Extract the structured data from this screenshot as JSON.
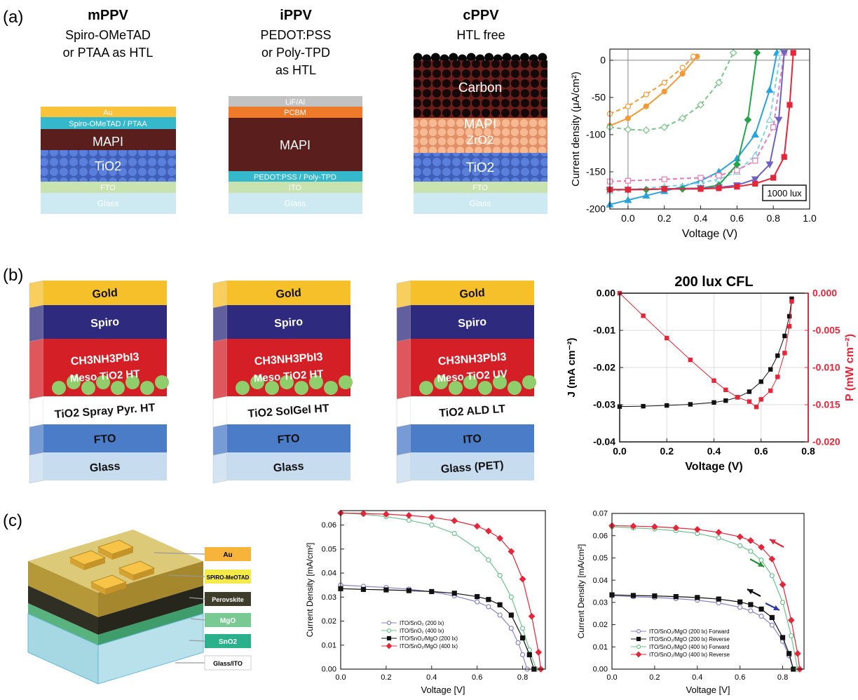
{
  "panels": {
    "a": "(a)",
    "b": "(b)",
    "c": "(c)"
  },
  "a_devices": [
    {
      "title": "mPPV",
      "subtitle": [
        "Spiro-OMeTAD",
        "or PTAA as HTL"
      ],
      "layers": [
        {
          "label": "Au",
          "color": "#f8c33a"
        },
        {
          "label": "Spiro-OMeTAD / PTAA",
          "color": "#36b8cc"
        },
        {
          "label": "MAPI",
          "color": "#5a1f1d"
        },
        {
          "label": "TiO2",
          "color": "#4a6fd0"
        },
        {
          "label": "FTO",
          "color": "#c8e2b0"
        },
        {
          "label": "Glass",
          "color": "#cdeaf2"
        }
      ]
    },
    {
      "title": "iPPV",
      "subtitle": [
        "PEDOT:PSS",
        "or Poly-TPD",
        "as HTL"
      ],
      "layers": [
        {
          "label": "LiF/Al",
          "color": "#c2c2c2"
        },
        {
          "label": "PCBM",
          "color": "#ee7a2a"
        },
        {
          "label": "MAPI",
          "color": "#5a1f1d"
        },
        {
          "label": "PEDOT:PSS / Poly-TPD",
          "color": "#36b8cc"
        },
        {
          "label": "ITO",
          "color": "#c8e2b0"
        },
        {
          "label": "Glass",
          "color": "#cdeaf2"
        }
      ]
    },
    {
      "title": "cPPV",
      "subtitle": [
        "HTL free"
      ],
      "layers": [
        {
          "label": "Carbon",
          "color": "#1c0c0c"
        },
        {
          "label": "MAPI",
          "color": "#5a1f1d"
        },
        {
          "label": "ZrO2",
          "color": "#f2a981"
        },
        {
          "label": "TiO2",
          "color": "#4a6fd0"
        },
        {
          "label": "FTO",
          "color": "#c8e2b0"
        },
        {
          "label": "Glass",
          "color": "#cdeaf2"
        }
      ]
    }
  ],
  "b_devices": [
    {
      "layers": [
        "Gold",
        "Spiro",
        "CH3NH3PbI3",
        "Meso TiO2 HT",
        "TiO2 Spray Pyr. HT",
        "FTO",
        "Glass"
      ]
    },
    {
      "layers": [
        "Gold",
        "Spiro",
        "CH3NH3PbI3",
        "Meso TiO2 HT",
        "TiO2 SolGel HT",
        "FTO",
        "Glass"
      ]
    },
    {
      "layers": [
        "Gold",
        "Spiro",
        "CH3NH3PbI3",
        "Meso TiO2 UV",
        "TiO2 ALD LT",
        "ITO",
        "Glass (PET)"
      ]
    }
  ],
  "c_device_labels": [
    "Au",
    "SPIRO-MeOTAD",
    "Perovskite",
    "MgO",
    "SnO2",
    "Glass/ITO"
  ],
  "colors": {
    "gold": "#f6c02a",
    "spiro": "#2e2a7e",
    "perov": "#d41f26",
    "meso": "#8fce6a",
    "fto": "#4a7cc8",
    "glass": "#c7dcef"
  },
  "chart_data": [
    {
      "type": "line",
      "id": "a",
      "xlabel": "Voltage (V)",
      "ylabel": "Current density (μA/cm²)",
      "xlim": [
        -0.1,
        1.0
      ],
      "ylim": [
        -200,
        15
      ],
      "xticks": [
        0.0,
        0.2,
        0.4,
        0.6,
        0.8,
        1.0
      ],
      "yticks": [
        -200,
        -150,
        -100,
        -50,
        0
      ],
      "annotation": "1000 lux",
      "series": [
        {
          "color": "#f39a36",
          "dashed": false,
          "marker": "circle",
          "filled": true,
          "x": [
            -0.1,
            0.0,
            0.1,
            0.2,
            0.3,
            0.38
          ],
          "y": [
            -88,
            -78,
            -62,
            -42,
            -18,
            5
          ]
        },
        {
          "color": "#f39a36",
          "dashed": true,
          "marker": "circle",
          "filled": false,
          "x": [
            -0.1,
            0.0,
            0.1,
            0.2,
            0.3,
            0.36
          ],
          "y": [
            -72,
            -62,
            -46,
            -30,
            -10,
            5
          ]
        },
        {
          "color": "#79c28a",
          "dashed": true,
          "marker": "diamond",
          "filled": false,
          "x": [
            -0.1,
            0.0,
            0.1,
            0.2,
            0.3,
            0.4,
            0.5,
            0.58
          ],
          "y": [
            -90,
            -93,
            -94,
            -90,
            -78,
            -60,
            -30,
            10
          ]
        },
        {
          "color": "#2aa3dc",
          "dashed": false,
          "marker": "triangle",
          "filled": true,
          "x": [
            -0.1,
            0.0,
            0.1,
            0.2,
            0.3,
            0.4,
            0.5,
            0.6,
            0.7,
            0.78,
            0.82
          ],
          "y": [
            -194,
            -188,
            -182,
            -176,
            -170,
            -162,
            -150,
            -132,
            -100,
            -40,
            10
          ]
        },
        {
          "color": "#7fd0e8",
          "dashed": true,
          "marker": "triangle",
          "filled": false,
          "x": [
            -0.1,
            0.0,
            0.2,
            0.4,
            0.5,
            0.6,
            0.7,
            0.78,
            0.84
          ],
          "y": [
            -176,
            -174,
            -170,
            -165,
            -160,
            -150,
            -128,
            -80,
            10
          ]
        },
        {
          "color": "#e87ab8",
          "dashed": true,
          "marker": "square",
          "filled": false,
          "x": [
            -0.1,
            0.0,
            0.2,
            0.4,
            0.5,
            0.6,
            0.7,
            0.8,
            0.86
          ],
          "y": [
            -163,
            -162,
            -160,
            -158,
            -155,
            -148,
            -135,
            -90,
            10
          ]
        },
        {
          "color": "#27a34a",
          "dashed": false,
          "marker": "diamond",
          "filled": true,
          "x": [
            -0.1,
            0.0,
            0.1,
            0.2,
            0.3,
            0.4,
            0.5,
            0.6,
            0.66,
            0.71
          ],
          "y": [
            -174,
            -174,
            -174,
            -173,
            -173,
            -172,
            -168,
            -140,
            -80,
            10
          ]
        },
        {
          "color": "#6f62c2",
          "dashed": false,
          "marker": "triangle-down",
          "filled": true,
          "x": [
            -0.1,
            0.0,
            0.2,
            0.4,
            0.5,
            0.6,
            0.7,
            0.78,
            0.83,
            0.86
          ],
          "y": [
            -174,
            -174,
            -173,
            -172,
            -171,
            -168,
            -160,
            -140,
            -80,
            10
          ]
        },
        {
          "color": "#e3263a",
          "dashed": false,
          "marker": "square",
          "filled": true,
          "x": [
            -0.1,
            0.0,
            0.2,
            0.4,
            0.5,
            0.6,
            0.7,
            0.8,
            0.86,
            0.89,
            0.91
          ],
          "y": [
            -174,
            -174,
            -173,
            -173,
            -172,
            -170,
            -166,
            -158,
            -130,
            -60,
            10
          ]
        }
      ]
    },
    {
      "type": "line",
      "id": "b",
      "title": "200 lux CFL",
      "xlabel": "Voltage (V)",
      "ylabel": "J (mA cm⁻²)",
      "y2label": "P (mW cm⁻²)",
      "xlim": [
        0,
        0.8
      ],
      "ylim": [
        -0.04,
        0.0
      ],
      "y2lim": [
        -0.02,
        0.0
      ],
      "xticks": [
        0.0,
        0.2,
        0.4,
        0.6,
        0.8
      ],
      "yticks": [
        "-0.04",
        "-0.03",
        "-0.02",
        "-0.01",
        "0.00"
      ],
      "y2ticks": [
        "-0.020",
        "-0.015",
        "-0.010",
        "-0.005",
        "0.000"
      ],
      "grid": true,
      "series": [
        {
          "axis": "left",
          "color": "#111111",
          "marker": "square",
          "x": [
            0.0,
            0.1,
            0.2,
            0.3,
            0.4,
            0.45,
            0.5,
            0.55,
            0.6,
            0.64,
            0.67,
            0.7,
            0.72,
            0.73
          ],
          "y": [
            -0.0305,
            -0.0304,
            -0.0302,
            -0.0299,
            -0.0294,
            -0.0289,
            -0.028,
            -0.0265,
            -0.0238,
            -0.0205,
            -0.0168,
            -0.0115,
            -0.0062,
            -0.0015
          ]
        },
        {
          "axis": "right",
          "color": "#e3263a",
          "marker": "square",
          "x": [
            0.0,
            0.1,
            0.2,
            0.3,
            0.4,
            0.45,
            0.5,
            0.55,
            0.58,
            0.6,
            0.64,
            0.67,
            0.7,
            0.72,
            0.73
          ],
          "y": [
            0.0,
            -0.00304,
            -0.00604,
            -0.00897,
            -0.01176,
            -0.013,
            -0.014,
            -0.01458,
            -0.0153,
            -0.01428,
            -0.01312,
            -0.01126,
            -0.00805,
            -0.00446,
            -0.0011
          ]
        }
      ]
    },
    {
      "type": "line",
      "id": "c1",
      "xlabel": "Voltage [V]",
      "ylabel": "Current Density [mA/cm²]",
      "xlim": [
        0,
        0.9
      ],
      "ylim": [
        0,
        0.066
      ],
      "xticks": [
        0.0,
        0.2,
        0.4,
        0.6,
        0.8
      ],
      "yticks": [
        0.0,
        0.01,
        0.02,
        0.03,
        0.04,
        0.05,
        0.06
      ],
      "legend": "lower-left",
      "series": [
        {
          "name": "ITO/SnO₂ (200 lx)",
          "color": "#8a82c8",
          "marker": "circle",
          "filled": false,
          "x": [
            0.0,
            0.1,
            0.2,
            0.3,
            0.4,
            0.5,
            0.6,
            0.65,
            0.7,
            0.75,
            0.78,
            0.8,
            0.82
          ],
          "y": [
            0.035,
            0.0345,
            0.034,
            0.0333,
            0.0322,
            0.0305,
            0.028,
            0.026,
            0.0225,
            0.017,
            0.011,
            0.006,
            0.0
          ]
        },
        {
          "name": "ITO/SnO₂ (400 lx)",
          "color": "#6fc18e",
          "marker": "circle",
          "filled": false,
          "x": [
            0.0,
            0.1,
            0.2,
            0.3,
            0.4,
            0.5,
            0.6,
            0.65,
            0.7,
            0.75,
            0.8,
            0.83,
            0.86
          ],
          "y": [
            0.065,
            0.0645,
            0.0635,
            0.062,
            0.06,
            0.0565,
            0.05,
            0.0455,
            0.039,
            0.03,
            0.017,
            0.008,
            0.0
          ]
        },
        {
          "name": "ITO/SnO₂/MgO (200 lx)",
          "color": "#111111",
          "marker": "square",
          "filled": true,
          "x": [
            0.0,
            0.1,
            0.2,
            0.3,
            0.4,
            0.5,
            0.6,
            0.65,
            0.7,
            0.75,
            0.8,
            0.83,
            0.85
          ],
          "y": [
            0.0335,
            0.0332,
            0.033,
            0.0327,
            0.0323,
            0.0316,
            0.0302,
            0.029,
            0.0268,
            0.0225,
            0.013,
            0.006,
            0.0
          ]
        },
        {
          "name": "ITO/SnO₂/MgO (400 lx)",
          "color": "#e3263a",
          "marker": "diamond",
          "filled": true,
          "x": [
            0.0,
            0.1,
            0.2,
            0.3,
            0.4,
            0.5,
            0.6,
            0.65,
            0.7,
            0.75,
            0.8,
            0.84,
            0.87,
            0.88
          ],
          "y": [
            0.065,
            0.0648,
            0.0645,
            0.064,
            0.0632,
            0.0618,
            0.0595,
            0.0575,
            0.0545,
            0.049,
            0.0375,
            0.022,
            0.007,
            0.0
          ]
        }
      ]
    },
    {
      "type": "line",
      "id": "c2",
      "xlabel": "Voltage [V]",
      "ylabel": "Current Density [mA/cm²]",
      "xlim": [
        0,
        0.9
      ],
      "ylim": [
        0,
        0.07
      ],
      "xticks": [
        0.0,
        0.2,
        0.4,
        0.6,
        0.8
      ],
      "yticks": [
        0.0,
        0.01,
        0.02,
        0.03,
        0.04,
        0.05,
        0.06,
        0.07
      ],
      "legend": "lower-left",
      "series": [
        {
          "name": "ITO/SnO₂/MgO (200 lx) Forward",
          "color": "#8a82c8",
          "marker": "circle",
          "filled": false,
          "x": [
            0.0,
            0.1,
            0.2,
            0.3,
            0.4,
            0.5,
            0.6,
            0.65,
            0.7,
            0.75,
            0.8,
            0.83,
            0.85
          ],
          "y": [
            0.033,
            0.0326,
            0.0322,
            0.0317,
            0.031,
            0.0298,
            0.0278,
            0.0262,
            0.0238,
            0.0198,
            0.0125,
            0.006,
            0.0
          ]
        },
        {
          "name": "ITO/SnO₂/MgO (200 lx) Reverse",
          "color": "#111111",
          "marker": "square",
          "filled": true,
          "x": [
            0.0,
            0.1,
            0.2,
            0.3,
            0.4,
            0.5,
            0.6,
            0.65,
            0.7,
            0.75,
            0.8,
            0.83,
            0.85
          ],
          "y": [
            0.0334,
            0.0331,
            0.0329,
            0.0326,
            0.0322,
            0.0315,
            0.0302,
            0.029,
            0.027,
            0.0232,
            0.0142,
            0.007,
            0.0
          ]
        },
        {
          "name": "ITO/SnO₂/MgO (400 lx) Forward",
          "color": "#6fc18e",
          "marker": "circle",
          "filled": false,
          "x": [
            0.0,
            0.1,
            0.2,
            0.3,
            0.4,
            0.5,
            0.6,
            0.65,
            0.7,
            0.75,
            0.8,
            0.84,
            0.87
          ],
          "y": [
            0.064,
            0.0635,
            0.063,
            0.0622,
            0.061,
            0.059,
            0.0555,
            0.053,
            0.049,
            0.042,
            0.03,
            0.015,
            0.0
          ]
        },
        {
          "name": "ITO/SnO₂/MgO (400 lx) Reverse",
          "color": "#e3263a",
          "marker": "diamond",
          "filled": true,
          "x": [
            0.0,
            0.1,
            0.2,
            0.3,
            0.4,
            0.5,
            0.6,
            0.65,
            0.7,
            0.75,
            0.8,
            0.84,
            0.87,
            0.88
          ],
          "y": [
            0.0645,
            0.0643,
            0.064,
            0.0635,
            0.0628,
            0.0615,
            0.0595,
            0.0578,
            0.0548,
            0.0495,
            0.038,
            0.022,
            0.007,
            0.0
          ]
        }
      ]
    }
  ]
}
